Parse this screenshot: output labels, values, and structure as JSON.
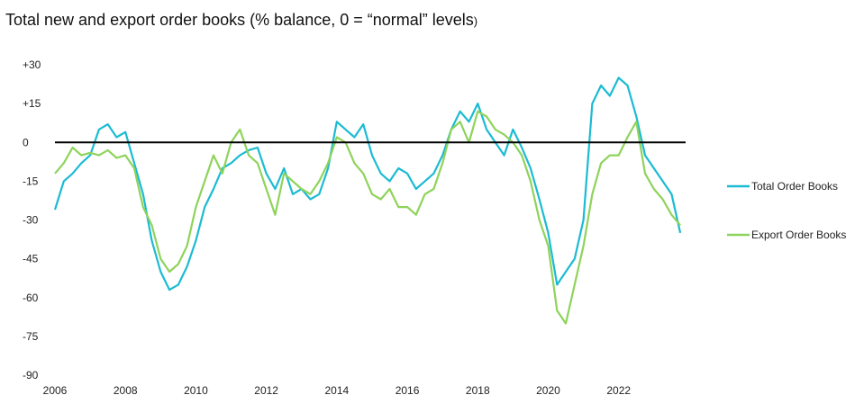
{
  "title_main": "Total new and export order books (% balance, 0 = “normal” levels",
  "title_paren": ")",
  "chart_data": {
    "type": "line",
    "title": "Total new and export order books (% balance, 0 = “normal” levels)",
    "xlabel": "",
    "ylabel": "",
    "ylim": [
      -90,
      30
    ],
    "xlim": [
      2006,
      2023.9
    ],
    "ytick_labels": [
      "+30",
      "+15",
      "0",
      "-15",
      "-30",
      "-45",
      "-60",
      "-75",
      "-90"
    ],
    "ytick_values": [
      30,
      15,
      0,
      -15,
      -30,
      -45,
      -60,
      -75,
      -90
    ],
    "xtick_labels": [
      "2006",
      "2008",
      "2010",
      "2012",
      "2014",
      "2016",
      "2018",
      "2020",
      "2022"
    ],
    "xtick_values": [
      2006,
      2008,
      2010,
      2012,
      2014,
      2016,
      2018,
      2020,
      2022
    ],
    "zero_line": true,
    "grid": false,
    "legend_position": "right",
    "series": [
      {
        "name": "Total Order Books",
        "color": "#1bbbd3",
        "x": [
          2006.0,
          2006.25,
          2006.5,
          2006.75,
          2007.0,
          2007.25,
          2007.5,
          2007.75,
          2008.0,
          2008.25,
          2008.5,
          2008.75,
          2009.0,
          2009.25,
          2009.5,
          2009.75,
          2010.0,
          2010.25,
          2010.5,
          2010.75,
          2011.0,
          2011.25,
          2011.5,
          2011.75,
          2012.0,
          2012.25,
          2012.5,
          2012.75,
          2013.0,
          2013.25,
          2013.5,
          2013.75,
          2014.0,
          2014.25,
          2014.5,
          2014.75,
          2015.0,
          2015.25,
          2015.5,
          2015.75,
          2016.0,
          2016.25,
          2016.5,
          2016.75,
          2017.0,
          2017.25,
          2017.5,
          2017.75,
          2018.0,
          2018.25,
          2018.5,
          2018.75,
          2019.0,
          2019.25,
          2019.5,
          2019.75,
          2020.0,
          2020.25,
          2020.5,
          2020.75,
          2021.0,
          2021.25,
          2021.5,
          2021.75,
          2022.0,
          2022.25,
          2022.5,
          2022.75,
          2023.0,
          2023.25,
          2023.5,
          2023.75
        ],
        "values": [
          -26,
          -15,
          -12,
          -8,
          -5,
          5,
          7,
          2,
          4,
          -8,
          -20,
          -38,
          -50,
          -57,
          -55,
          -48,
          -38,
          -25,
          -18,
          -10,
          -8,
          -5,
          -3,
          -2,
          -12,
          -18,
          -10,
          -20,
          -18,
          -22,
          -20,
          -10,
          8,
          5,
          2,
          7,
          -5,
          -12,
          -15,
          -10,
          -12,
          -18,
          -15,
          -12,
          -5,
          5,
          12,
          8,
          15,
          5,
          0,
          -5,
          5,
          -2,
          -10,
          -22,
          -35,
          -55,
          -50,
          -45,
          -30,
          15,
          22,
          18,
          25,
          22,
          10,
          -5,
          -10,
          -15,
          -20,
          -35
        ]
      },
      {
        "name": "Export Order Books",
        "color": "#8ed35a",
        "x": [
          2006.0,
          2006.25,
          2006.5,
          2006.75,
          2007.0,
          2007.25,
          2007.5,
          2007.75,
          2008.0,
          2008.25,
          2008.5,
          2008.75,
          2009.0,
          2009.25,
          2009.5,
          2009.75,
          2010.0,
          2010.25,
          2010.5,
          2010.75,
          2011.0,
          2011.25,
          2011.5,
          2011.75,
          2012.0,
          2012.25,
          2012.5,
          2012.75,
          2013.0,
          2013.25,
          2013.5,
          2013.75,
          2014.0,
          2014.25,
          2014.5,
          2014.75,
          2015.0,
          2015.25,
          2015.5,
          2015.75,
          2016.0,
          2016.25,
          2016.5,
          2016.75,
          2017.0,
          2017.25,
          2017.5,
          2017.75,
          2018.0,
          2018.25,
          2018.5,
          2018.75,
          2019.0,
          2019.25,
          2019.5,
          2019.75,
          2020.0,
          2020.25,
          2020.5,
          2020.75,
          2021.0,
          2021.25,
          2021.5,
          2021.75,
          2022.0,
          2022.25,
          2022.5,
          2022.75,
          2023.0,
          2023.25,
          2023.5,
          2023.75
        ],
        "values": [
          -12,
          -8,
          -2,
          -5,
          -4,
          -5,
          -3,
          -6,
          -5,
          -10,
          -25,
          -32,
          -45,
          -50,
          -47,
          -40,
          -25,
          -15,
          -5,
          -12,
          0,
          5,
          -5,
          -8,
          -18,
          -28,
          -12,
          -15,
          -18,
          -20,
          -15,
          -8,
          2,
          0,
          -8,
          -12,
          -20,
          -22,
          -18,
          -25,
          -25,
          -28,
          -20,
          -18,
          -8,
          5,
          8,
          0,
          12,
          10,
          5,
          3,
          0,
          -5,
          -15,
          -30,
          -40,
          -65,
          -70,
          -55,
          -40,
          -20,
          -8,
          -5,
          -5,
          2,
          8,
          -12,
          -18,
          -22,
          -28,
          -32
        ]
      }
    ]
  }
}
